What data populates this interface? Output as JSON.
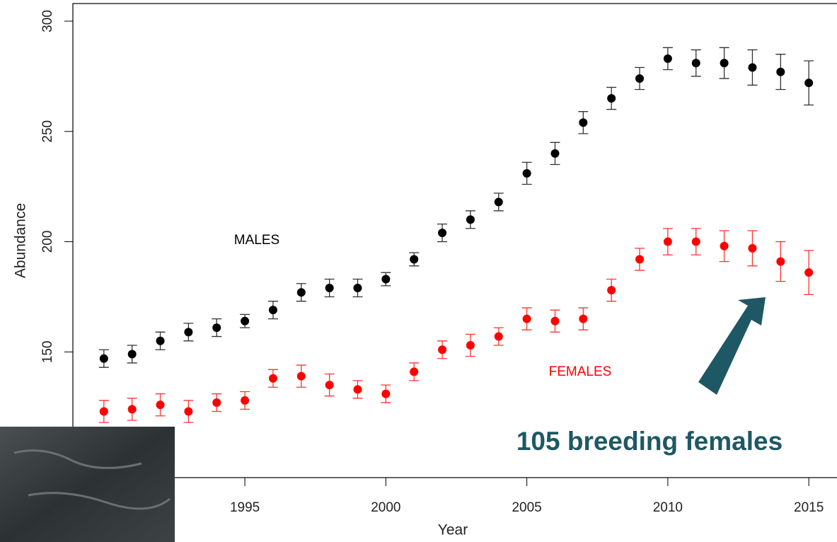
{
  "chart_data": {
    "type": "errorbar",
    "x_label": "Year",
    "y_label": "Abundance",
    "x": [
      1990,
      1991,
      1992,
      1993,
      1994,
      1995,
      1996,
      1997,
      1998,
      1999,
      2000,
      2001,
      2002,
      2003,
      2004,
      2005,
      2006,
      2007,
      2008,
      2009,
      2010,
      2011,
      2012,
      2013,
      2014,
      2015
    ],
    "series": [
      {
        "name": "MALES",
        "color": "#000000",
        "values": [
          147,
          149,
          155,
          159,
          161,
          164,
          169,
          177,
          179,
          179,
          183,
          192,
          204,
          210,
          218,
          231,
          240,
          254,
          265,
          274,
          283,
          281,
          281,
          279,
          277,
          272
        ],
        "errors": [
          4,
          4,
          4,
          4,
          4,
          3,
          4,
          4,
          4,
          4,
          3,
          3,
          4,
          4,
          4,
          5,
          5,
          5,
          5,
          5,
          5,
          6,
          7,
          8,
          8,
          10
        ]
      },
      {
        "name": "FEMALES",
        "color": "#ff0000",
        "values": [
          123,
          124,
          126,
          123,
          127,
          128,
          138,
          139,
          135,
          133,
          131,
          141,
          151,
          153,
          157,
          165,
          164,
          165,
          178,
          192,
          200,
          200,
          198,
          197,
          191,
          186
        ],
        "errors": [
          5,
          5,
          5,
          5,
          4,
          4,
          4,
          5,
          5,
          4,
          4,
          4,
          4,
          5,
          4,
          5,
          5,
          5,
          5,
          5,
          6,
          6,
          7,
          8,
          9,
          10
        ]
      }
    ],
    "annotation": "105 breeding females",
    "annotation_color": "#1e5864",
    "xlim": [
      1988.9,
      2016
    ],
    "ylim": [
      93,
      308
    ],
    "xticks": [
      1995,
      2000,
      2005,
      2010,
      2015
    ],
    "yticks": [
      150,
      200,
      250,
      300
    ]
  }
}
